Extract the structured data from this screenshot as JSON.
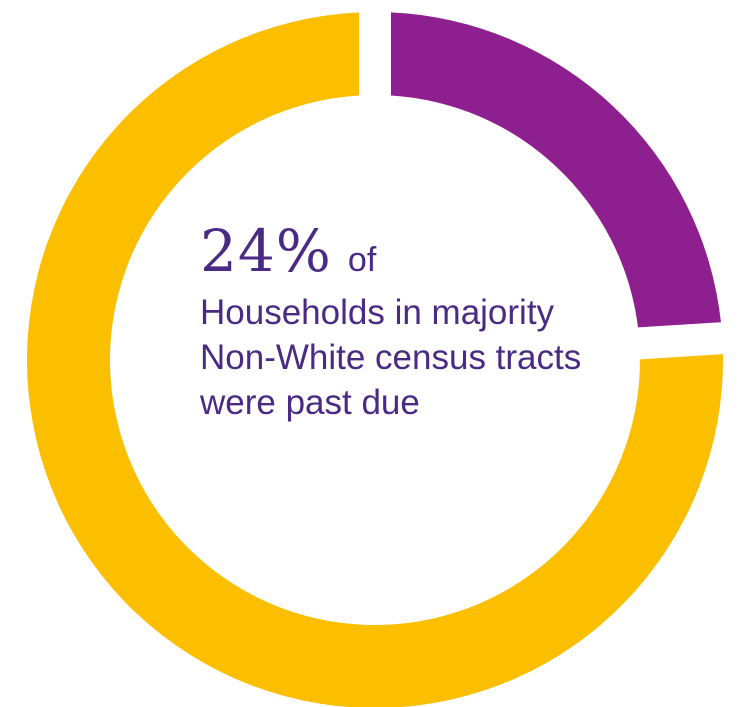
{
  "chart_data": {
    "type": "pie",
    "style": "donut",
    "slices": [
      {
        "value": 24,
        "color": "#8e1f8f"
      },
      {
        "value": 76,
        "color": "#fbbf00"
      }
    ]
  },
  "caption": {
    "percent_text": "24%",
    "of_text": "of",
    "description_lines": [
      "Households in majority",
      "Non-White census tracts",
      "were past due"
    ]
  }
}
